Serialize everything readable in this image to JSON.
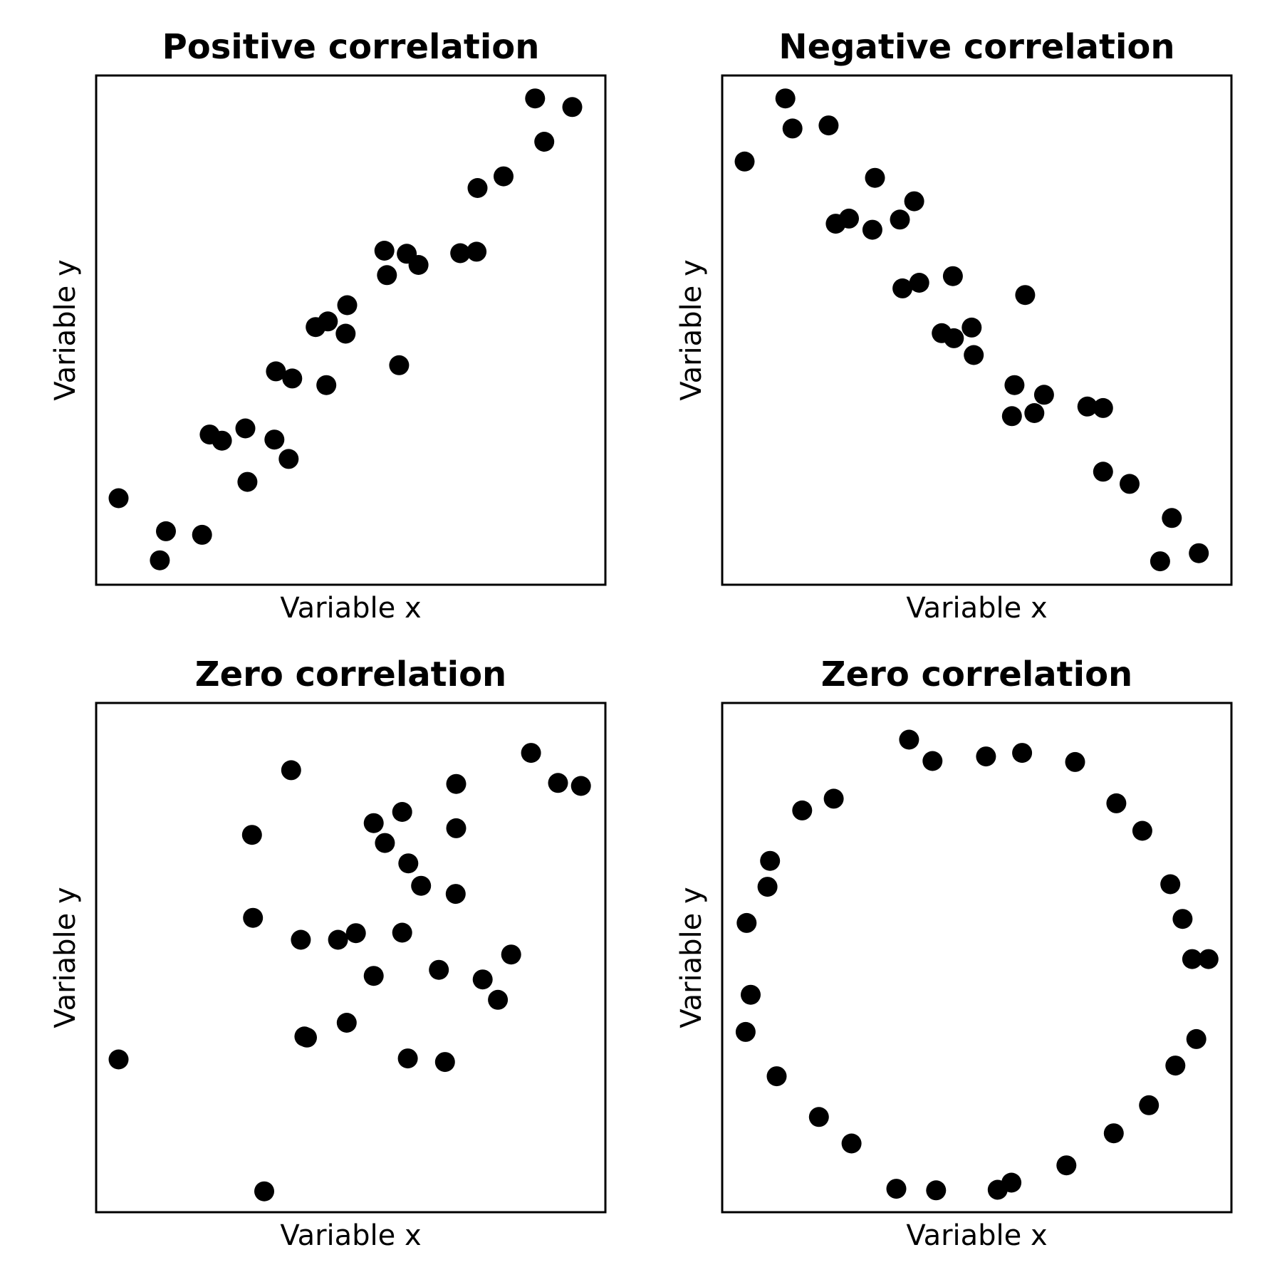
{
  "figure": {
    "point_color": "#000000",
    "background_color": "#ffffff"
  },
  "chart_data": [
    {
      "type": "scatter",
      "title": "Positive correlation",
      "xlabel": "Variable x",
      "ylabel": "Variable y",
      "xlim": [
        0,
        1
      ],
      "ylim": [
        0,
        1
      ],
      "ticks": "none",
      "grid": false,
      "points": [
        {
          "x": 0.044,
          "y": 0.17
        },
        {
          "x": 0.125,
          "y": 0.048
        },
        {
          "x": 0.137,
          "y": 0.105
        },
        {
          "x": 0.208,
          "y": 0.098
        },
        {
          "x": 0.223,
          "y": 0.295
        },
        {
          "x": 0.247,
          "y": 0.283
        },
        {
          "x": 0.293,
          "y": 0.307
        },
        {
          "x": 0.297,
          "y": 0.202
        },
        {
          "x": 0.35,
          "y": 0.285
        },
        {
          "x": 0.353,
          "y": 0.419
        },
        {
          "x": 0.378,
          "y": 0.247
        },
        {
          "x": 0.385,
          "y": 0.405
        },
        {
          "x": 0.431,
          "y": 0.506
        },
        {
          "x": 0.455,
          "y": 0.517
        },
        {
          "x": 0.452,
          "y": 0.392
        },
        {
          "x": 0.49,
          "y": 0.493
        },
        {
          "x": 0.493,
          "y": 0.549
        },
        {
          "x": 0.566,
          "y": 0.656
        },
        {
          "x": 0.571,
          "y": 0.608
        },
        {
          "x": 0.595,
          "y": 0.431
        },
        {
          "x": 0.61,
          "y": 0.65
        },
        {
          "x": 0.633,
          "y": 0.628
        },
        {
          "x": 0.715,
          "y": 0.651
        },
        {
          "x": 0.747,
          "y": 0.654
        },
        {
          "x": 0.749,
          "y": 0.779
        },
        {
          "x": 0.8,
          "y": 0.802
        },
        {
          "x": 0.862,
          "y": 0.955
        },
        {
          "x": 0.88,
          "y": 0.87
        },
        {
          "x": 0.935,
          "y": 0.938
        }
      ]
    },
    {
      "type": "scatter",
      "title": "Negative correlation",
      "xlabel": "Variable x",
      "ylabel": "Variable y",
      "xlim": [
        0,
        1
      ],
      "ylim": [
        0,
        1
      ],
      "ticks": "none",
      "grid": false,
      "points": [
        {
          "x": 0.044,
          "y": 0.831
        },
        {
          "x": 0.124,
          "y": 0.955
        },
        {
          "x": 0.138,
          "y": 0.896
        },
        {
          "x": 0.209,
          "y": 0.902
        },
        {
          "x": 0.223,
          "y": 0.709
        },
        {
          "x": 0.249,
          "y": 0.719
        },
        {
          "x": 0.3,
          "y": 0.799
        },
        {
          "x": 0.295,
          "y": 0.697
        },
        {
          "x": 0.349,
          "y": 0.717
        },
        {
          "x": 0.354,
          "y": 0.582
        },
        {
          "x": 0.377,
          "y": 0.753
        },
        {
          "x": 0.387,
          "y": 0.593
        },
        {
          "x": 0.431,
          "y": 0.494
        },
        {
          "x": 0.455,
          "y": 0.484
        },
        {
          "x": 0.453,
          "y": 0.606
        },
        {
          "x": 0.49,
          "y": 0.505
        },
        {
          "x": 0.494,
          "y": 0.451
        },
        {
          "x": 0.569,
          "y": 0.331
        },
        {
          "x": 0.574,
          "y": 0.392
        },
        {
          "x": 0.595,
          "y": 0.569
        },
        {
          "x": 0.613,
          "y": 0.337
        },
        {
          "x": 0.632,
          "y": 0.373
        },
        {
          "x": 0.717,
          "y": 0.35
        },
        {
          "x": 0.748,
          "y": 0.347
        },
        {
          "x": 0.748,
          "y": 0.222
        },
        {
          "x": 0.8,
          "y": 0.198
        },
        {
          "x": 0.86,
          "y": 0.046
        },
        {
          "x": 0.883,
          "y": 0.131
        },
        {
          "x": 0.936,
          "y": 0.062
        }
      ]
    },
    {
      "type": "scatter",
      "title": "Zero correlation",
      "xlabel": "Variable x",
      "ylabel": "Variable y",
      "xlim": [
        0,
        1
      ],
      "ylim": [
        0,
        1
      ],
      "ticks": "none",
      "grid": false,
      "points": [
        {
          "x": 0.044,
          "y": 0.3
        },
        {
          "x": 0.306,
          "y": 0.741
        },
        {
          "x": 0.308,
          "y": 0.578
        },
        {
          "x": 0.33,
          "y": 0.041
        },
        {
          "x": 0.383,
          "y": 0.868
        },
        {
          "x": 0.402,
          "y": 0.535
        },
        {
          "x": 0.409,
          "y": 0.345
        },
        {
          "x": 0.414,
          "y": 0.343
        },
        {
          "x": 0.475,
          "y": 0.535
        },
        {
          "x": 0.492,
          "y": 0.372
        },
        {
          "x": 0.51,
          "y": 0.548
        },
        {
          "x": 0.545,
          "y": 0.764
        },
        {
          "x": 0.545,
          "y": 0.464
        },
        {
          "x": 0.567,
          "y": 0.725
        },
        {
          "x": 0.601,
          "y": 0.786
        },
        {
          "x": 0.601,
          "y": 0.549
        },
        {
          "x": 0.612,
          "y": 0.302
        },
        {
          "x": 0.613,
          "y": 0.685
        },
        {
          "x": 0.638,
          "y": 0.641
        },
        {
          "x": 0.673,
          "y": 0.476
        },
        {
          "x": 0.685,
          "y": 0.295
        },
        {
          "x": 0.707,
          "y": 0.841
        },
        {
          "x": 0.707,
          "y": 0.754
        },
        {
          "x": 0.706,
          "y": 0.625
        },
        {
          "x": 0.759,
          "y": 0.457
        },
        {
          "x": 0.789,
          "y": 0.417
        },
        {
          "x": 0.815,
          "y": 0.506
        },
        {
          "x": 0.854,
          "y": 0.902
        },
        {
          "x": 0.907,
          "y": 0.843
        },
        {
          "x": 0.952,
          "y": 0.837
        }
      ]
    },
    {
      "type": "scatter",
      "title": "Zero correlation",
      "xlabel": "Variable x",
      "ylabel": "Variable y",
      "xlim": [
        0,
        1
      ],
      "ylim": [
        0,
        1
      ],
      "ticks": "none",
      "grid": false,
      "points": [
        {
          "x": 0.367,
          "y": 0.928
        },
        {
          "x": 0.413,
          "y": 0.886
        },
        {
          "x": 0.518,
          "y": 0.895
        },
        {
          "x": 0.589,
          "y": 0.902
        },
        {
          "x": 0.693,
          "y": 0.884
        },
        {
          "x": 0.774,
          "y": 0.803
        },
        {
          "x": 0.825,
          "y": 0.749
        },
        {
          "x": 0.88,
          "y": 0.644
        },
        {
          "x": 0.904,
          "y": 0.576
        },
        {
          "x": 0.923,
          "y": 0.497
        },
        {
          "x": 0.955,
          "y": 0.497
        },
        {
          "x": 0.931,
          "y": 0.34
        },
        {
          "x": 0.89,
          "y": 0.288
        },
        {
          "x": 0.838,
          "y": 0.21
        },
        {
          "x": 0.769,
          "y": 0.155
        },
        {
          "x": 0.676,
          "y": 0.092
        },
        {
          "x": 0.568,
          "y": 0.058
        },
        {
          "x": 0.541,
          "y": 0.044
        },
        {
          "x": 0.42,
          "y": 0.043
        },
        {
          "x": 0.342,
          "y": 0.046
        },
        {
          "x": 0.254,
          "y": 0.135
        },
        {
          "x": 0.19,
          "y": 0.187
        },
        {
          "x": 0.107,
          "y": 0.267
        },
        {
          "x": 0.046,
          "y": 0.354
        },
        {
          "x": 0.056,
          "y": 0.427
        },
        {
          "x": 0.048,
          "y": 0.568
        },
        {
          "x": 0.089,
          "y": 0.639
        },
        {
          "x": 0.094,
          "y": 0.69
        },
        {
          "x": 0.157,
          "y": 0.789
        },
        {
          "x": 0.219,
          "y": 0.812
        }
      ]
    }
  ]
}
